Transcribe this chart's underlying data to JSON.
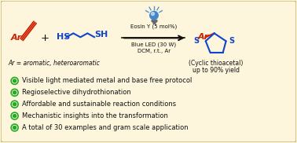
{
  "bg_color": "#fdf5dc",
  "border_color": "#c8b870",
  "condition0": "Eosin Y (5 mol%)",
  "condition1": "Blue LED (30 W)",
  "condition2": "DCM, r.t., Ar",
  "ar_label": "Ar = aromatic, heteroaromatic",
  "product_label1": "(Cyclic thioacetal)",
  "product_label2": "up to 90% yield",
  "bullets": [
    "Visible light mediated metal and base free protocol",
    "Regioselective dihydrothionation",
    "Affordable and sustainable reaction conditions",
    "Mechanistic insights into the transformation",
    "A total of 30 examples and gram scale application"
  ],
  "bullet_color": "#22aa22",
  "text_color": "#1a1a1a",
  "red_color": "#cc2200",
  "blue_color": "#1144cc",
  "black_color": "#111111",
  "lamp_color": "#4488cc",
  "lamp_base": "#666666"
}
